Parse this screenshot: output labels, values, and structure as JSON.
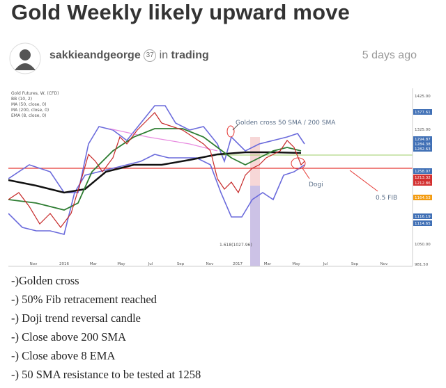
{
  "post": {
    "title": "Gold Weekly likely upward move",
    "author": "sakkieandgeorge",
    "reputation": "37",
    "in_label": "in",
    "category": "trading",
    "time": "5 days ago"
  },
  "chart_image": {
    "header": [
      "Gold Futures, W, (CFD)",
      "BB (10, 2)",
      "MA (50, close, 0)",
      "MA (200, close, 0)",
      "EMA (8, close, 0)"
    ],
    "price_labels": [
      "1425.00",
      "1377.61",
      "1325.00",
      "1294.87",
      "1284.38",
      "1282.63",
      "1258.07",
      "1213.32",
      "1212.86",
      "1164.53",
      "1116.19",
      "1114.65",
      "1050.00",
      "981.50"
    ],
    "time_labels": [
      "Nov",
      "2016",
      "Mar",
      "May",
      "Jul",
      "Sep",
      "Nov",
      "2017",
      "Mar",
      "May",
      "Jul",
      "Sep",
      "Nov"
    ],
    "annotations": {
      "golden_cross": "Golden cross 50 SMA / 200 SMA",
      "doji": "Dogi",
      "fib": "0.5 FIB",
      "fib_ext": "1.618(1027.96)"
    }
  },
  "body": {
    "lines": [
      "-)Golden cross",
      "-) 50% Fib retracement reached",
      "-) Doji trend reversal candle",
      "-) Close above 200 SMA",
      "-) Close above 8 EMA",
      "-) 50 SMA resistance to be tested at 1258"
    ]
  }
}
